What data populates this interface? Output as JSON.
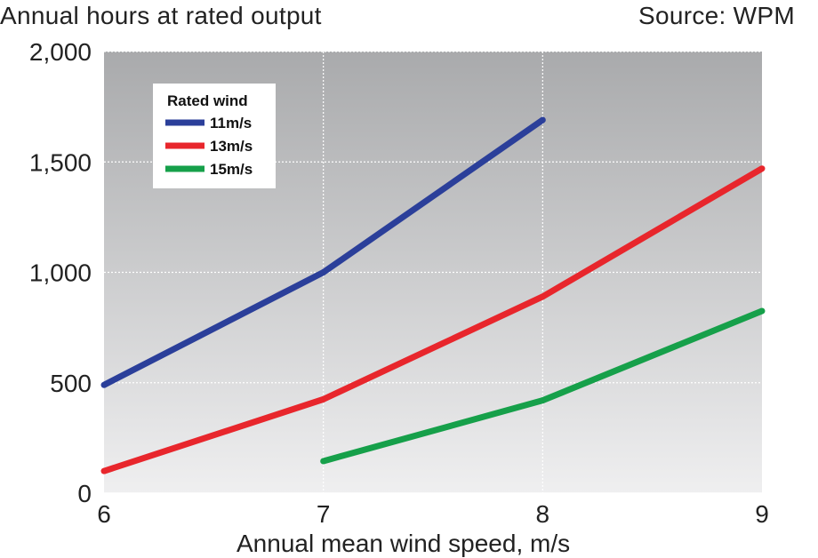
{
  "chart_data": {
    "type": "line",
    "title": "Annual hours at rated output",
    "source": "Source: WPM",
    "xlabel": "Annual mean wind speed, m/s",
    "ylabel": "",
    "xlim": [
      6,
      9
    ],
    "ylim": [
      0,
      2000
    ],
    "x_ticks": [
      6,
      7,
      8,
      9
    ],
    "x_tick_labels": [
      "6",
      "7",
      "8",
      "9"
    ],
    "y_ticks": [
      0,
      500,
      1000,
      1500,
      2000
    ],
    "y_tick_labels": [
      "0",
      "500",
      "1,000",
      "1,500",
      "2,000"
    ],
    "grid": true,
    "legend": {
      "title": "Rated wind",
      "placement": "top-left"
    },
    "series": [
      {
        "name": "11m/s",
        "color": "#2b3f9a",
        "points": [
          [
            6,
            490
          ],
          [
            7,
            1000
          ],
          [
            8,
            1690
          ]
        ]
      },
      {
        "name": "13m/s",
        "color": "#e8262c",
        "points": [
          [
            6,
            100
          ],
          [
            7,
            425
          ],
          [
            8,
            890
          ],
          [
            9,
            1470
          ]
        ]
      },
      {
        "name": "15m/s",
        "color": "#16a04a",
        "points": [
          [
            7,
            145
          ],
          [
            8,
            420
          ],
          [
            9,
            825
          ]
        ]
      }
    ]
  }
}
